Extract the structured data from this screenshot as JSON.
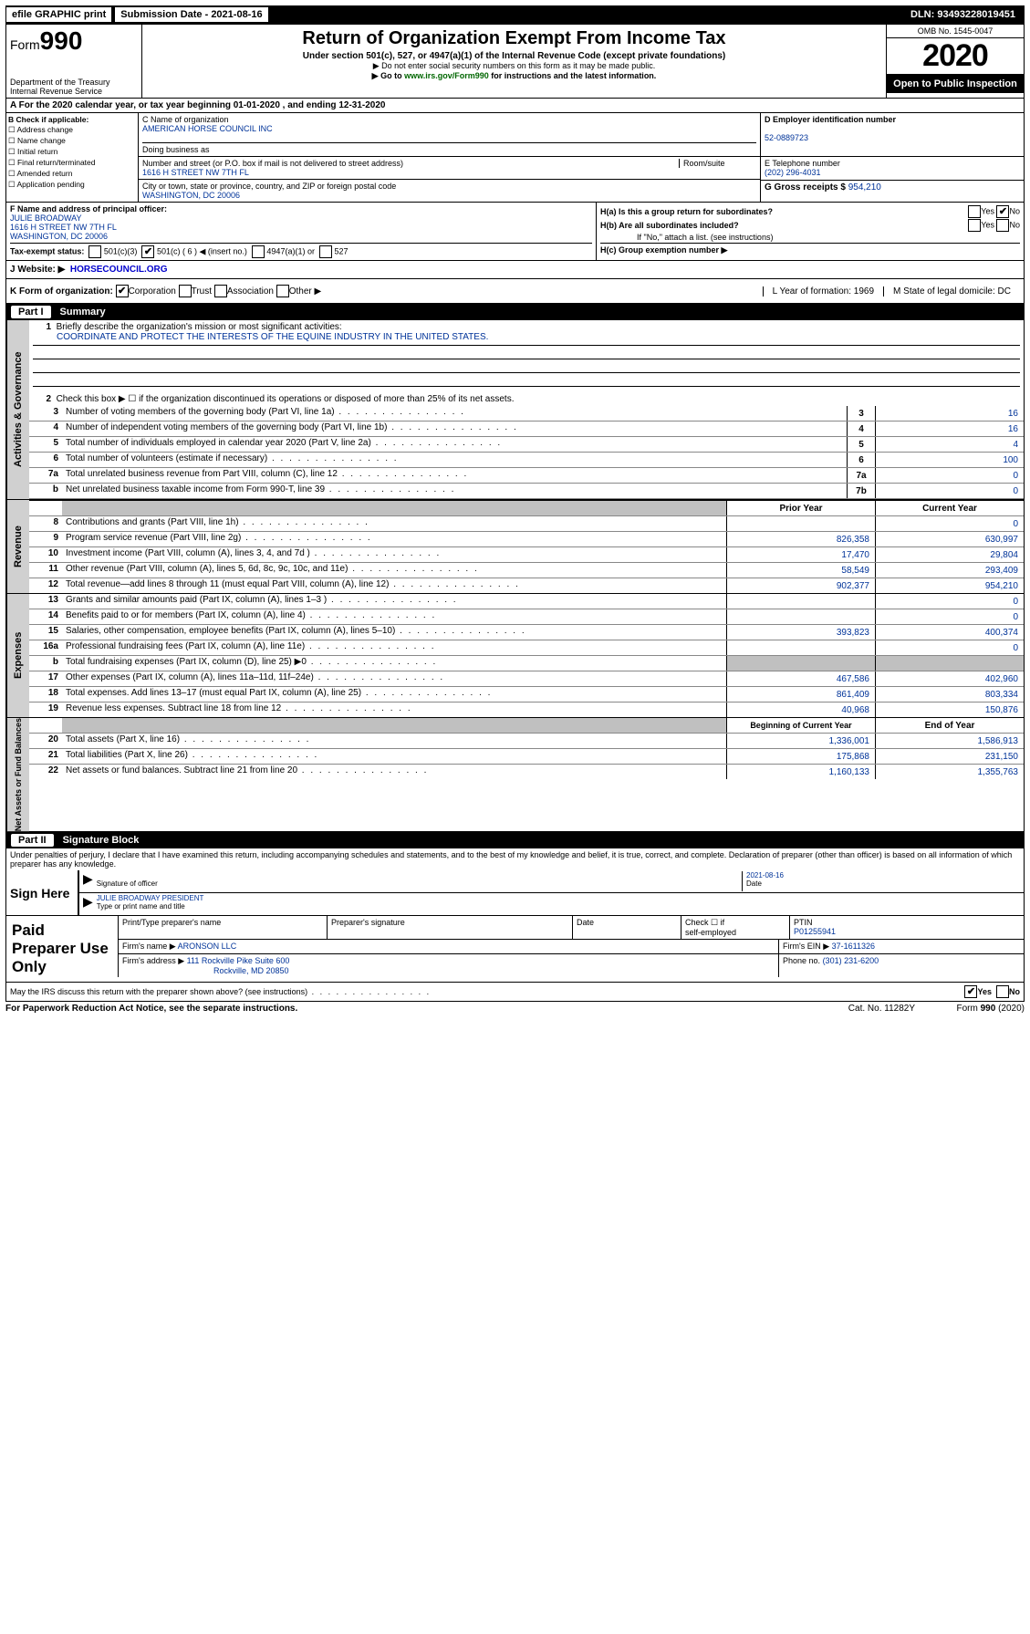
{
  "topbar": {
    "efile": "efile GRAPHIC print",
    "submission": "Submission Date - 2021-08-16",
    "dln": "DLN: 93493228019451"
  },
  "header": {
    "form_prefix": "Form",
    "form_number": "990",
    "dept": "Department of the Treasury",
    "irs": "Internal Revenue Service",
    "title": "Return of Organization Exempt From Income Tax",
    "subtitle": "Under section 501(c), 527, or 4947(a)(1) of the Internal Revenue Code (except private foundations)",
    "note1": "▶ Do not enter social security numbers on this form as it may be made public.",
    "note2_pre": "▶ Go to ",
    "note2_link": "www.irs.gov/Form990",
    "note2_post": " for instructions and the latest information.",
    "omb": "OMB No. 1545-0047",
    "year": "2020",
    "open": "Open to Public Inspection"
  },
  "rowA": "A For the 2020 calendar year, or tax year beginning 01-01-2020    , and ending 12-31-2020",
  "boxB": {
    "title": "B Check if applicable:",
    "opts": [
      "Address change",
      "Name change",
      "Initial return",
      "Final return/terminated",
      "Amended return",
      "Application pending"
    ]
  },
  "boxC": {
    "name_label": "C Name of organization",
    "name": "AMERICAN HORSE COUNCIL INC",
    "dba_label": "Doing business as",
    "addr_label": "Number and street (or P.O. box if mail is not delivered to street address)",
    "room_label": "Room/suite",
    "addr": "1616 H STREET NW 7TH FL",
    "city_label": "City or town, state or province, country, and ZIP or foreign postal code",
    "city": "WASHINGTON, DC  20006"
  },
  "boxD": {
    "label": "D Employer identification number",
    "value": "52-0889723"
  },
  "boxE": {
    "label": "E Telephone number",
    "value": "(202) 296-4031"
  },
  "boxG": {
    "label": "G Gross receipts $",
    "value": "954,210"
  },
  "boxF": {
    "label": "F Name and address of principal officer:",
    "name": "JULIE BROADWAY",
    "addr": "1616 H STREET NW 7TH FL",
    "city": "WASHINGTON, DC  20006"
  },
  "boxH": {
    "ha": "H(a)  Is this a group return for subordinates?",
    "hb": "H(b)  Are all subordinates included?",
    "hb_note": "If \"No,\" attach a list. (see instructions)",
    "hc": "H(c)  Group exemption number ▶",
    "yes": "Yes",
    "no": "No"
  },
  "boxI": {
    "label": "Tax-exempt status:",
    "o1": "501(c)(3)",
    "o2": "501(c) ( 6 ) ◀ (insert no.)",
    "o3": "4947(a)(1) or",
    "o4": "527"
  },
  "boxJ": {
    "label": "J   Website: ▶",
    "value": "HORSECOUNCIL.ORG"
  },
  "boxK": {
    "label": "K Form of organization:",
    "o1": "Corporation",
    "o2": "Trust",
    "o3": "Association",
    "o4": "Other ▶",
    "L": "L Year of formation: 1969",
    "M": "M State of legal domicile: DC"
  },
  "part1": {
    "num": "Part I",
    "title": "Summary"
  },
  "mission": {
    "q1": "Briefly describe the organization's mission or most significant activities:",
    "text": "COORDINATE AND PROTECT THE INTERESTS OF THE EQUINE INDUSTRY IN THE UNITED STATES.",
    "q2": "Check this box ▶ ☐  if the organization discontinued its operations or disposed of more than 25% of its net assets."
  },
  "governance_rows": [
    {
      "n": "3",
      "t": "Number of voting members of the governing body (Part VI, line 1a)",
      "b": "3",
      "v": "16"
    },
    {
      "n": "4",
      "t": "Number of independent voting members of the governing body (Part VI, line 1b)",
      "b": "4",
      "v": "16"
    },
    {
      "n": "5",
      "t": "Total number of individuals employed in calendar year 2020 (Part V, line 2a)",
      "b": "5",
      "v": "4"
    },
    {
      "n": "6",
      "t": "Total number of volunteers (estimate if necessary)",
      "b": "6",
      "v": "100"
    },
    {
      "n": "7a",
      "t": "Total unrelated business revenue from Part VIII, column (C), line 12",
      "b": "7a",
      "v": "0"
    },
    {
      "n": "b",
      "t": "Net unrelated business taxable income from Form 990-T, line 39",
      "b": "7b",
      "v": "0"
    }
  ],
  "py_header": "Prior Year",
  "cy_header": "Current Year",
  "revenue_rows": [
    {
      "n": "8",
      "t": "Contributions and grants (Part VIII, line 1h)",
      "py": "",
      "cy": "0"
    },
    {
      "n": "9",
      "t": "Program service revenue (Part VIII, line 2g)",
      "py": "826,358",
      "cy": "630,997"
    },
    {
      "n": "10",
      "t": "Investment income (Part VIII, column (A), lines 3, 4, and 7d )",
      "py": "17,470",
      "cy": "29,804"
    },
    {
      "n": "11",
      "t": "Other revenue (Part VIII, column (A), lines 5, 6d, 8c, 9c, 10c, and 11e)",
      "py": "58,549",
      "cy": "293,409"
    },
    {
      "n": "12",
      "t": "Total revenue—add lines 8 through 11 (must equal Part VIII, column (A), line 12)",
      "py": "902,377",
      "cy": "954,210"
    }
  ],
  "expense_rows": [
    {
      "n": "13",
      "t": "Grants and similar amounts paid (Part IX, column (A), lines 1–3 )",
      "py": "",
      "cy": "0"
    },
    {
      "n": "14",
      "t": "Benefits paid to or for members (Part IX, column (A), line 4)",
      "py": "",
      "cy": "0"
    },
    {
      "n": "15",
      "t": "Salaries, other compensation, employee benefits (Part IX, column (A), lines 5–10)",
      "py": "393,823",
      "cy": "400,374"
    },
    {
      "n": "16a",
      "t": "Professional fundraising fees (Part IX, column (A), line 11e)",
      "py": "",
      "cy": "0"
    },
    {
      "n": "b",
      "t": "Total fundraising expenses (Part IX, column (D), line 25) ▶0",
      "py": "shade",
      "cy": "shade"
    },
    {
      "n": "17",
      "t": "Other expenses (Part IX, column (A), lines 11a–11d, 11f–24e)",
      "py": "467,586",
      "cy": "402,960"
    },
    {
      "n": "18",
      "t": "Total expenses. Add lines 13–17 (must equal Part IX, column (A), line 25)",
      "py": "861,409",
      "cy": "803,334"
    },
    {
      "n": "19",
      "t": "Revenue less expenses. Subtract line 18 from line 12",
      "py": "40,968",
      "cy": "150,876"
    }
  ],
  "bcy_header": "Beginning of Current Year",
  "eoy_header": "End of Year",
  "netassets_rows": [
    {
      "n": "20",
      "t": "Total assets (Part X, line 16)",
      "py": "1,336,001",
      "cy": "1,586,913"
    },
    {
      "n": "21",
      "t": "Total liabilities (Part X, line 26)",
      "py": "175,868",
      "cy": "231,150"
    },
    {
      "n": "22",
      "t": "Net assets or fund balances. Subtract line 21 from line 20",
      "py": "1,160,133",
      "cy": "1,355,763"
    }
  ],
  "part2": {
    "num": "Part II",
    "title": "Signature Block"
  },
  "perjury": "Under penalties of perjury, I declare that I have examined this return, including accompanying schedules and statements, and to the best of my knowledge and belief, it is true, correct, and complete. Declaration of preparer (other than officer) is based on all information of which preparer has any knowledge.",
  "sign": {
    "here": "Sign Here",
    "sig_officer": "Signature of officer",
    "date": "2021-08-16",
    "date_label": "Date",
    "name": "JULIE BROADWAY  PRESIDENT",
    "name_label": "Type or print name and title"
  },
  "paid": {
    "label": "Paid Preparer Use Only",
    "h1": "Print/Type preparer's name",
    "h2": "Preparer's signature",
    "h3": "Date",
    "h4a": "Check ☐ if",
    "h4b": "self-employed",
    "h5": "PTIN",
    "ptin": "P01255941",
    "firm_label": "Firm's name    ▶",
    "firm": "ARONSON LLC",
    "ein_label": "Firm's EIN ▶",
    "ein": "37-1611326",
    "addr_label": "Firm's address ▶",
    "addr1": "111 Rockville Pike Suite 600",
    "addr2": "Rockville, MD  20850",
    "phone_label": "Phone no.",
    "phone": "(301) 231-6200"
  },
  "discuss": "May the IRS discuss this return with the preparer shown above? (see instructions)",
  "footer": {
    "pra": "For Paperwork Reduction Act Notice, see the separate instructions.",
    "cat": "Cat. No. 11282Y",
    "form": "Form 990 (2020)"
  },
  "vtabs": {
    "gov": "Activities & Governance",
    "rev": "Revenue",
    "exp": "Expenses",
    "net": "Net Assets or Fund Balances"
  }
}
